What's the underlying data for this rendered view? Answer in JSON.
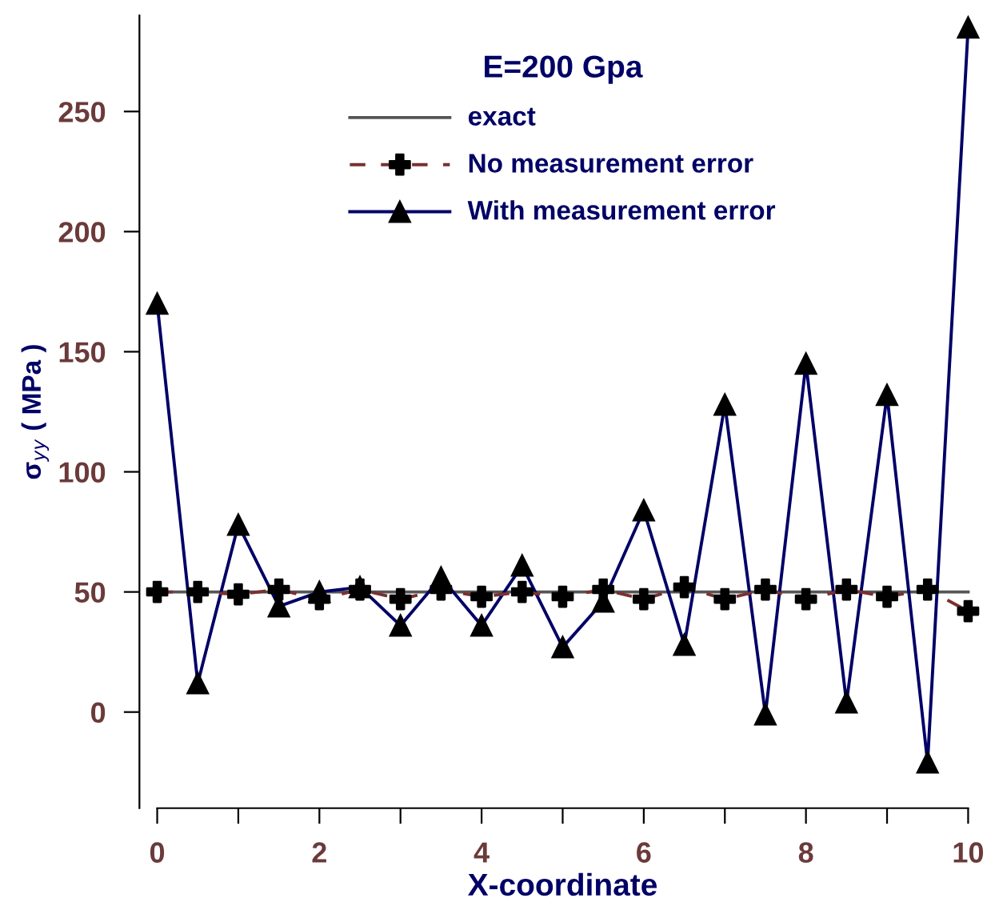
{
  "chart_data": {
    "type": "line",
    "xlabel": "X-coordinate",
    "ylabel": "σ$_{yy}$ ( MPa )",
    "legend_title": "E=200 Gpa",
    "legend": "top",
    "grid": false,
    "xlim": [
      0,
      10
    ],
    "ylim": [
      -40,
      290
    ],
    "xticks": [
      0,
      {
        "value": 1,
        "label": null
      },
      2,
      {
        "value": 3,
        "label": null
      },
      4,
      {
        "value": 5,
        "label": null
      },
      6,
      {
        "value": 7,
        "label": null
      },
      8,
      {
        "value": 9,
        "label": null
      },
      10
    ],
    "yticks": [
      0,
      50,
      100,
      150,
      200,
      250
    ],
    "series": [
      {
        "name": "exact",
        "color": "#555555",
        "line_style": "solid",
        "x": [
          0,
          10
        ],
        "values": [
          50,
          50
        ]
      },
      {
        "name": "No measurement error",
        "color": "#7a3030",
        "line_style": "dashed",
        "marker": "cross",
        "x": [
          0,
          0.5,
          1,
          1.5,
          2,
          2.5,
          3,
          3.5,
          4,
          4.5,
          5,
          5.5,
          6,
          6.5,
          7,
          7.5,
          8,
          8.5,
          9,
          9.5,
          10
        ],
        "values": [
          50,
          50,
          49,
          51,
          47,
          51,
          47,
          51,
          48,
          50,
          48,
          51,
          47,
          52,
          47,
          51,
          47,
          51,
          48,
          51,
          42
        ]
      },
      {
        "name": "With measurement error",
        "color": "#000066",
        "line_style": "solid",
        "marker": "triangle",
        "x": [
          0,
          0.5,
          1,
          1.5,
          2,
          2.5,
          3,
          3.5,
          4,
          4.5,
          5,
          5.5,
          6,
          6.5,
          7,
          7.5,
          8,
          8.5,
          9,
          9.5,
          10
        ],
        "values": [
          170,
          12,
          78,
          44,
          50,
          52,
          36,
          56,
          36,
          61,
          27,
          46,
          84,
          28,
          128,
          -1,
          145,
          4,
          132,
          -21,
          285
        ]
      }
    ]
  }
}
